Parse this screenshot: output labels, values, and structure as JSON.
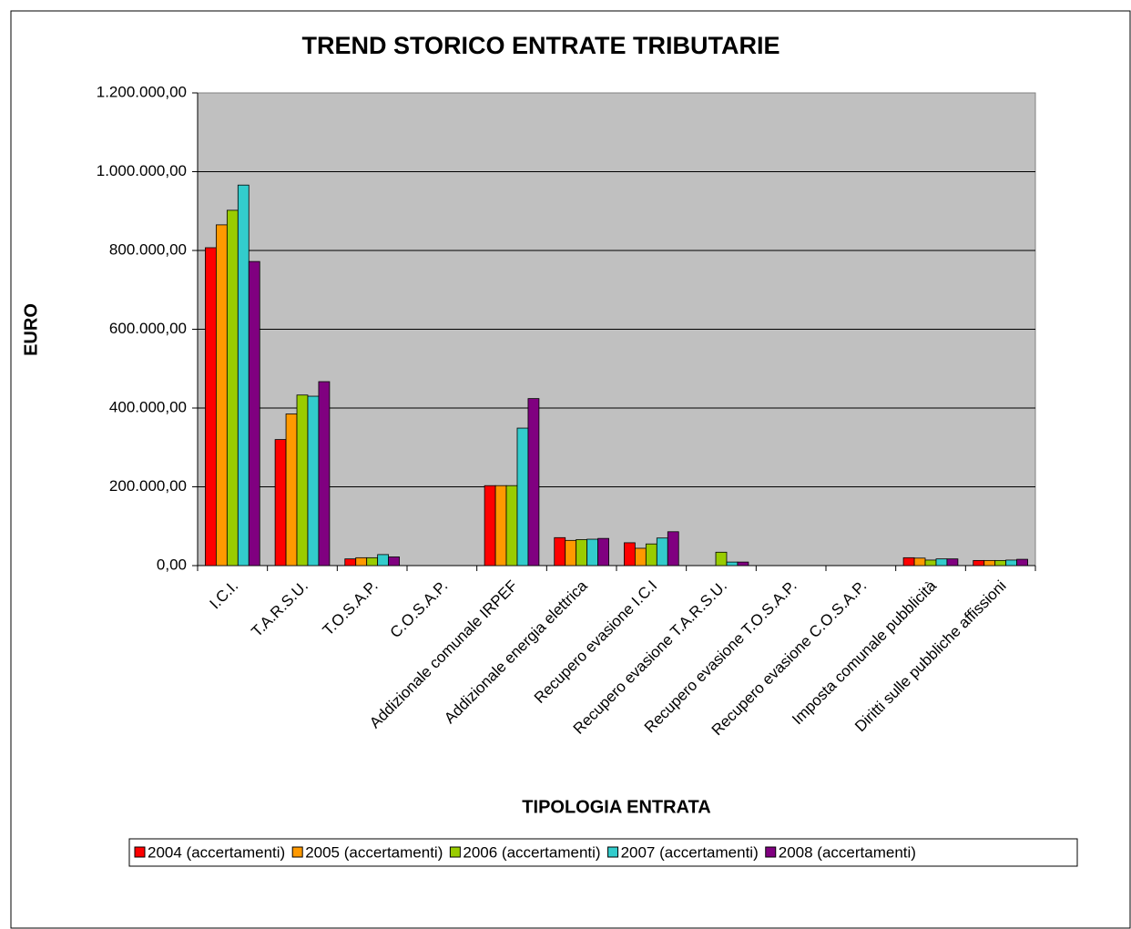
{
  "chart_data": {
    "type": "bar",
    "title": "TREND STORICO ENTRATE TRIBUTARIE",
    "x_label": "TIPOLOGIA ENTRATA",
    "y_label": "EURO",
    "categories": [
      "I.C.I.",
      "T.A.R.S.U.",
      "T.O.S.A.P.",
      "C.O.S.A.P.",
      "Addizionale comunale IRPEF",
      "Addizionale energia elettrica",
      "Recupero evasione I.C.I",
      "Recupero evasione T.A.R.S.U.",
      "Recupero evasione T.O.S.A.P.",
      "Recupero evasione C.O.S.A.P.",
      "Imposta comunale pubblicità",
      "Diritti sulle pubbliche affissioni"
    ],
    "series": [
      {
        "name": "2004 (accertamenti)",
        "color": "#ff0000",
        "values": [
          807000,
          320000,
          17000,
          0,
          203000,
          71000,
          58000,
          0,
          0,
          0,
          20000,
          13000
        ]
      },
      {
        "name": "2005 (accertamenti)",
        "color": "#ff9900",
        "values": [
          865000,
          385000,
          20000,
          0,
          203000,
          64000,
          44000,
          0,
          0,
          0,
          19000,
          13000
        ]
      },
      {
        "name": "2006 (accertamenti)",
        "color": "#99cc00",
        "values": [
          902000,
          433000,
          20000,
          0,
          203000,
          66000,
          55000,
          34000,
          0,
          0,
          14000,
          13000
        ]
      },
      {
        "name": "2007 (accertamenti)",
        "color": "#33cccc",
        "values": [
          966000,
          430000,
          28000,
          0,
          349000,
          67000,
          70000,
          9000,
          0,
          0,
          17000,
          14000
        ]
      },
      {
        "name": "2008 (accertamenti)",
        "color": "#800080",
        "values": [
          772000,
          467000,
          22000,
          0,
          424000,
          69000,
          86000,
          9000,
          0,
          0,
          17000,
          16000
        ]
      }
    ],
    "ylim": [
      0,
      1200000
    ],
    "yticks": [
      {
        "value": 0,
        "label": "0,00"
      },
      {
        "value": 200000,
        "label": "200.000,00"
      },
      {
        "value": 400000,
        "label": "400.000,00"
      },
      {
        "value": 600000,
        "label": "600.000,00"
      },
      {
        "value": 800000,
        "label": "800.000,00"
      },
      {
        "value": 1000000,
        "label": "1.000.000,00"
      },
      {
        "value": 1200000,
        "label": "1.200.000,00"
      }
    ],
    "grid": true,
    "legend": "bottom",
    "plot_background": "#c0c0c0"
  }
}
